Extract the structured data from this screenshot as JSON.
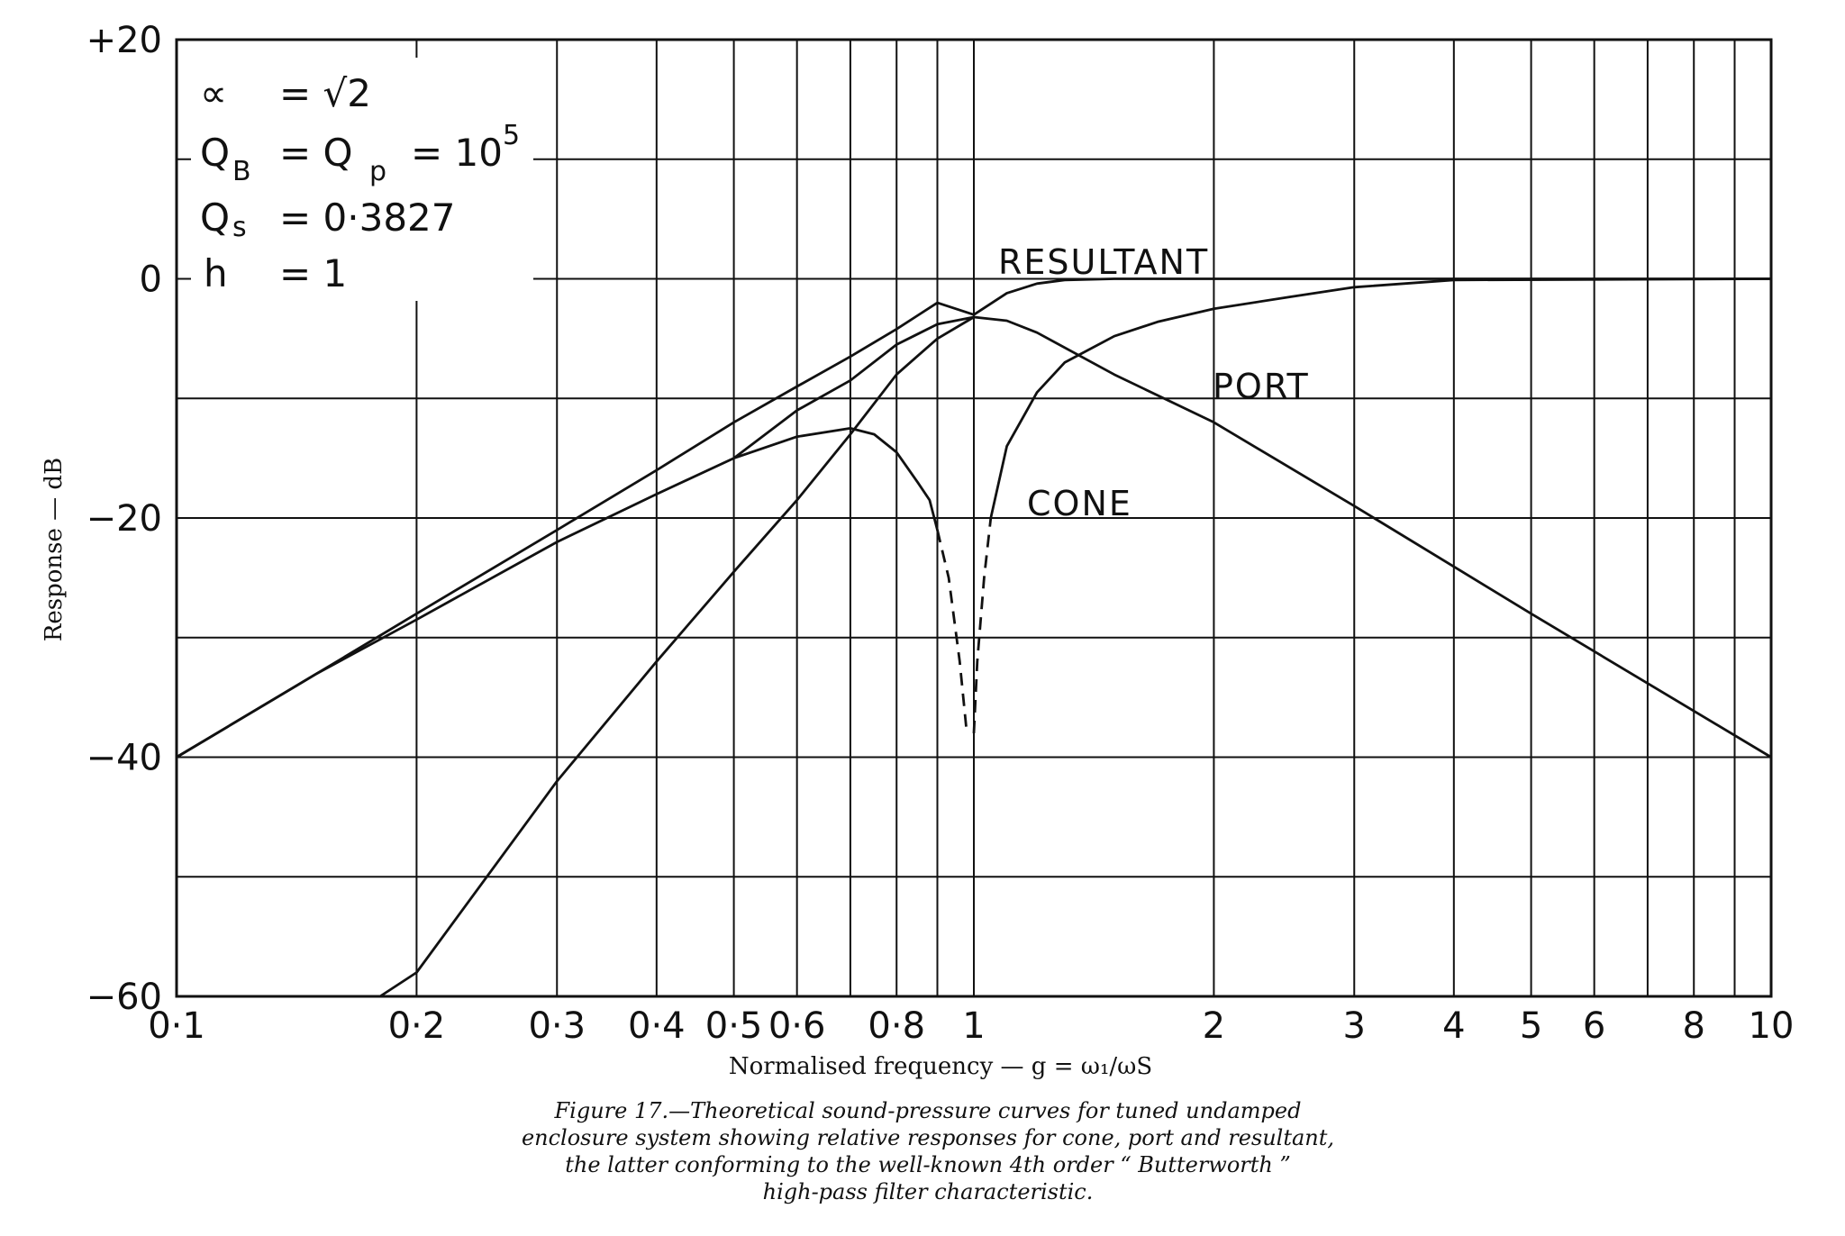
{
  "chart_data": {
    "type": "line",
    "xscale": "log",
    "xlim": [
      0.1,
      10
    ],
    "ylim": [
      -60,
      20
    ],
    "grid": true,
    "xlabel": "Normalised frequency — g = ω₁/ωS",
    "ylabel": "Response — dB",
    "x_ticks": [
      0.1,
      0.2,
      0.3,
      0.4,
      0.5,
      0.6,
      0.8,
      1,
      2,
      3,
      4,
      5,
      6,
      8,
      10
    ],
    "x_tick_labels": [
      "0·1",
      "0·2",
      "0·3",
      "0·4",
      "0·5",
      "0·6",
      "0·8",
      "1",
      "2",
      "3",
      "4",
      "5",
      "6",
      "8",
      "10"
    ],
    "y_ticks": [
      20,
      0,
      -20,
      -40,
      -60
    ],
    "y_tick_labels": [
      "+20",
      "0",
      "−20",
      "−40",
      "−60"
    ],
    "series": [
      {
        "name": "RESULTANT",
        "x": [
          0.1,
          0.15,
          0.2,
          0.3,
          0.4,
          0.5,
          0.6,
          0.7,
          0.8,
          0.9,
          1.0,
          1.1,
          1.2,
          1.3,
          1.5,
          2.0,
          3.0,
          5.0,
          10.0
        ],
        "y": [
          -40.0,
          -33.0,
          -28.0,
          -21.0,
          -16.0,
          -12.0,
          -9.0,
          -6.5,
          -4.2,
          -2.0,
          -3.0,
          -1.2,
          -0.4,
          -0.1,
          0.0,
          0.0,
          0.0,
          0.0,
          0.0
        ]
      },
      {
        "name": "CONE",
        "x": [
          0.1,
          0.15,
          0.2,
          0.3,
          0.4,
          0.5,
          0.6,
          0.7,
          0.75,
          0.8,
          0.85,
          0.88,
          0.9
        ],
        "y": [
          -40.0,
          -33.0,
          -28.5,
          -22.0,
          -18.0,
          -15.0,
          -13.2,
          -12.5,
          -13.0,
          -14.5,
          -17.0,
          -18.5,
          -21.0
        ],
        "dashed": {
          "x": [
            0.9,
            0.93,
            0.96,
            0.98
          ],
          "y": [
            -21.0,
            -25.0,
            -32.0,
            -38.0
          ]
        }
      },
      {
        "name": "CONE",
        "x": [
          0.5,
          0.6,
          0.7,
          0.8,
          0.9,
          1.0,
          1.1,
          1.2,
          1.5,
          2.0,
          3.0,
          5.0,
          10.0
        ],
        "y": [
          -15.0,
          -11.0,
          -8.5,
          -5.5,
          -3.8,
          -3.2,
          -3.5,
          -4.5,
          -8.0,
          -12.0,
          -19.0,
          -28.0,
          -40.0
        ]
      },
      {
        "name": "PORT",
        "x": [
          0.18,
          0.2,
          0.3,
          0.4,
          0.5,
          0.6,
          0.7,
          0.8,
          0.9,
          1.0
        ],
        "y": [
          -60.0,
          -58.0,
          -42.0,
          -32.0,
          -24.5,
          -18.5,
          -13.0,
          -8.0,
          -5.0,
          -3.2
        ]
      },
      {
        "name": "PORT",
        "x": [
          1.05,
          1.1,
          1.2,
          1.3,
          1.5,
          1.7,
          2.0,
          2.5,
          3.0,
          4.0,
          10.0
        ],
        "y": [
          -20.0,
          -14.0,
          -9.5,
          -7.0,
          -4.8,
          -3.6,
          -2.5,
          -1.5,
          -0.7,
          -0.1,
          0.0
        ],
        "dashed": {
          "x": [
            1.0,
            1.01,
            1.03,
            1.05
          ],
          "y": [
            -38.0,
            -32.0,
            -25.0,
            -20.0
          ]
        }
      }
    ],
    "curve_labels": [
      "RESULTANT",
      "PORT",
      "CONE"
    ],
    "parameters": [
      {
        "symbol": "∝",
        "sub": "",
        "value": "=  √2"
      },
      {
        "symbol": "Q",
        "sub": "B",
        "value": "=  Q"
      },
      {
        "symbol": "Q",
        "sub": "s",
        "value": "=  0·3827"
      },
      {
        "symbol": "h",
        "sub": "",
        "value": "=  1"
      }
    ],
    "parameter_extra": {
      "qp_sub": "p",
      "qp_value": "=  10",
      "qp_exp": "5"
    }
  },
  "caption": {
    "lines": [
      "Figure 17.—Theoretical sound-pressure curves for tuned undamped",
      "enclosure system showing relative responses for cone, port and resultant,",
      "the latter conforming to the well-known 4th order “ Butterworth ”",
      "high-pass filter characteristic."
    ]
  }
}
